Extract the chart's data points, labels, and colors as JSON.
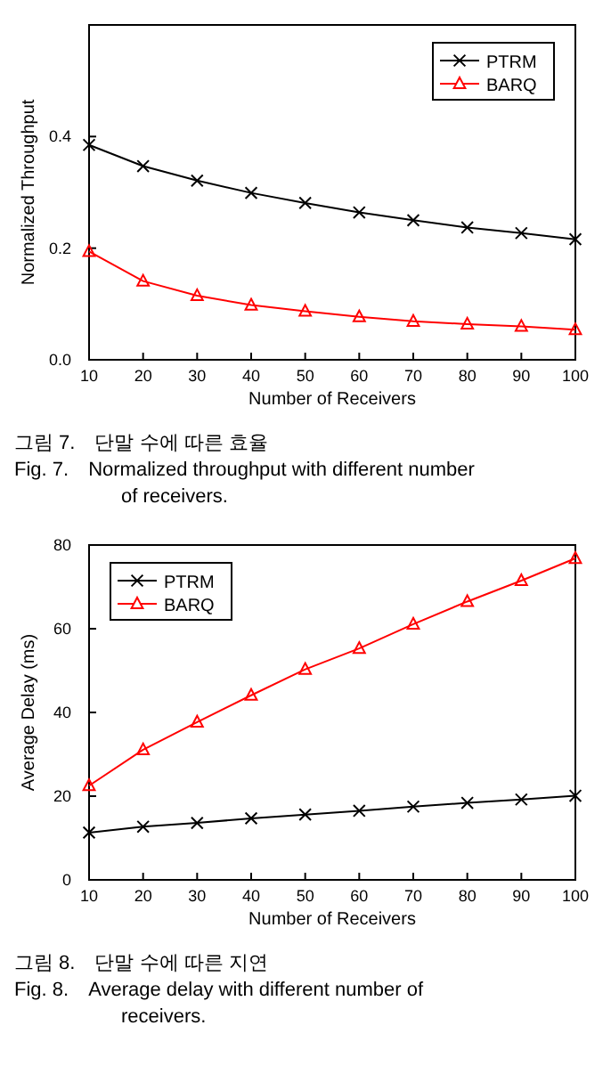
{
  "chart_data": [
    {
      "type": "line",
      "xlabel": "Number of Receivers",
      "ylabel": "Normalized Throughput",
      "x": [
        10,
        20,
        30,
        40,
        50,
        60,
        70,
        80,
        90,
        100
      ],
      "xlim": [
        10,
        100
      ],
      "xticks": [
        10,
        20,
        30,
        40,
        50,
        60,
        70,
        80,
        90,
        100
      ],
      "ylim": [
        0,
        0.6
      ],
      "yticks": [
        {
          "value": 0,
          "label": "0.0"
        },
        {
          "value": 0.2,
          "label": "0.2"
        },
        {
          "value": 0.4,
          "label": "0.4"
        }
      ],
      "grid": false,
      "legend": "top right",
      "line_style": "solid",
      "series": [
        {
          "name": "PTRM",
          "color": "#000000",
          "marker": "cross",
          "values": [
            0.385,
            0.347,
            0.321,
            0.299,
            0.281,
            0.264,
            0.25,
            0.237,
            0.227,
            0.216
          ]
        },
        {
          "name": "BARQ",
          "color": "#ff0000",
          "marker": "triangle",
          "values": [
            0.194,
            0.141,
            0.115,
            0.098,
            0.087,
            0.077,
            0.069,
            0.064,
            0.06,
            0.054
          ]
        }
      ],
      "annotations": [
        "그림 7. 단말 수에 따른 효율",
        "Fig. 7. Normalized throughput with different number of receivers."
      ]
    },
    {
      "type": "line",
      "xlabel": "Number of Receivers",
      "ylabel": "Average Delay (ms)",
      "x": [
        10,
        20,
        30,
        40,
        50,
        60,
        70,
        80,
        90,
        100
      ],
      "xlim": [
        10,
        100
      ],
      "xticks": [
        10,
        20,
        30,
        40,
        50,
        60,
        70,
        80,
        90,
        100
      ],
      "ylim": [
        0,
        80
      ],
      "yticks": [
        0,
        20,
        40,
        60,
        80
      ],
      "grid": false,
      "legend": "top left",
      "line_style": "solid",
      "series": [
        {
          "name": "PTRM",
          "color": "#000000",
          "marker": "cross",
          "values": [
            11.3,
            12.7,
            13.6,
            14.7,
            15.6,
            16.5,
            17.5,
            18.4,
            19.2,
            20.1
          ]
        },
        {
          "name": "BARQ",
          "color": "#ff0000",
          "marker": "triangle",
          "values": [
            22.5,
            31.1,
            37.7,
            44.1,
            50.3,
            55.3,
            61.1,
            66.5,
            71.5,
            76.8
          ]
        }
      ],
      "annotations": [
        "그림 8. 단말 수에 따른 지연",
        "Fig. 8. Average delay with different number of receivers."
      ]
    }
  ]
}
